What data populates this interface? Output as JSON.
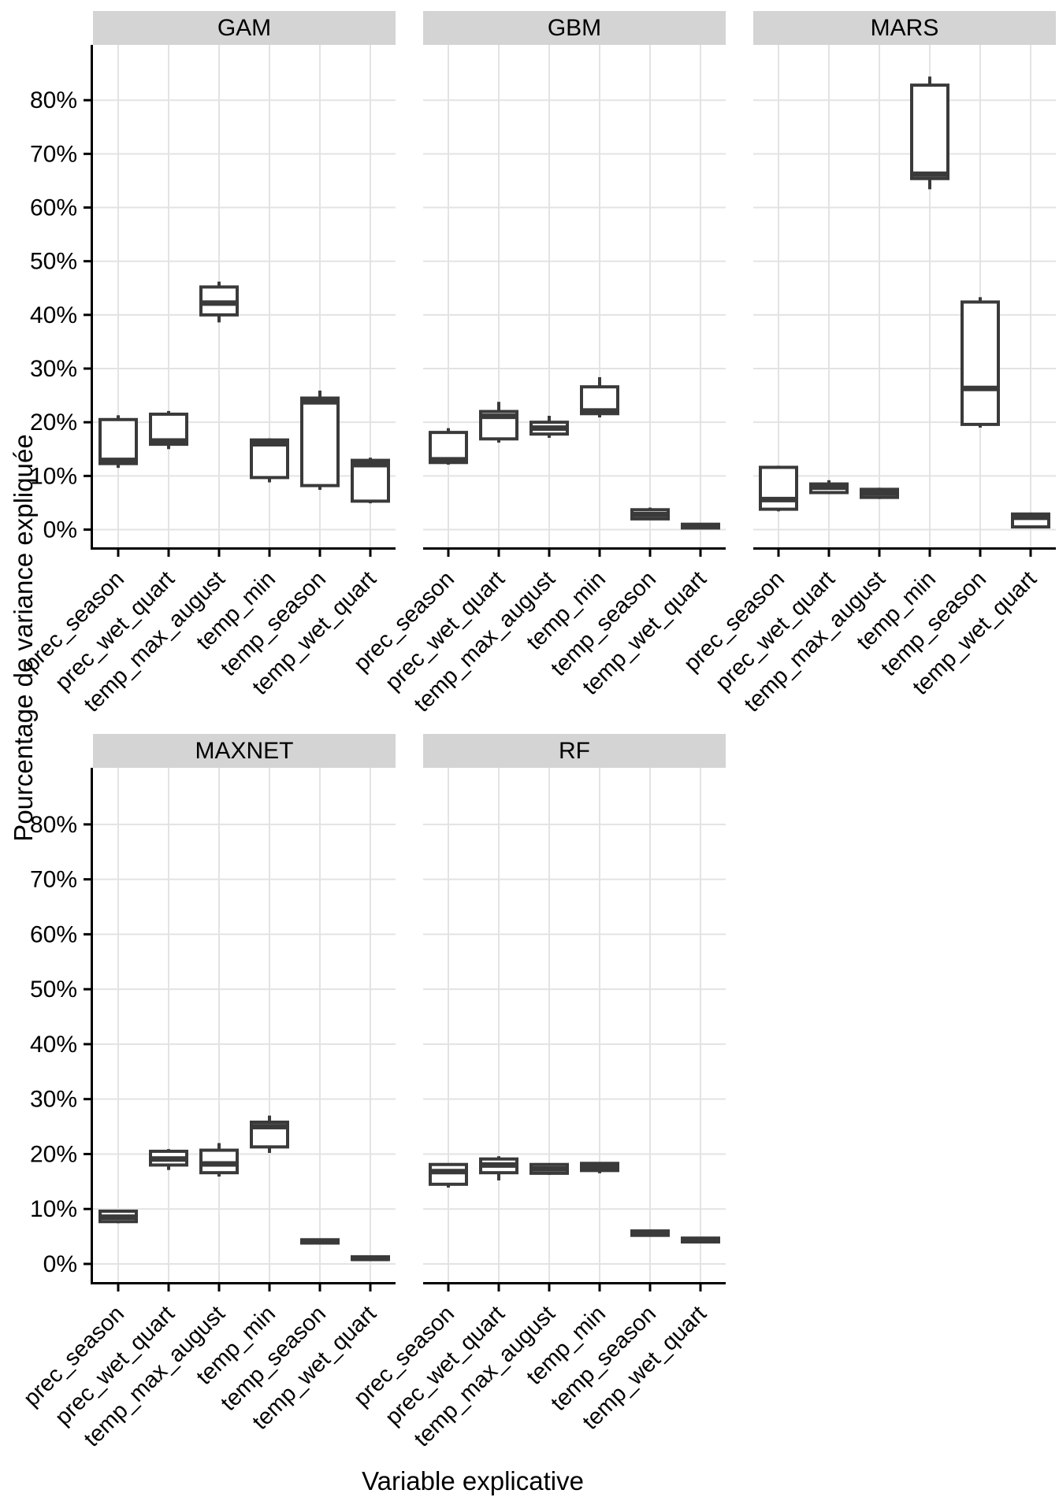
{
  "chart_data": {
    "type": "boxplot",
    "title": "",
    "ylabel": "Pourcentage de variance expliquée",
    "xlabel": "Variable explicative",
    "ylim": [
      -3.3,
      90.3
    ],
    "grid": true,
    "y_ticks": [
      {
        "value": 0,
        "label": "0%"
      },
      {
        "value": 10,
        "label": "10%"
      },
      {
        "value": 20,
        "label": "20%"
      },
      {
        "value": 30,
        "label": "30%"
      },
      {
        "value": 40,
        "label": "40%"
      },
      {
        "value": 50,
        "label": "50%"
      },
      {
        "value": 60,
        "label": "60%"
      },
      {
        "value": 70,
        "label": "70%"
      },
      {
        "value": 80,
        "label": "80%"
      }
    ],
    "categories": [
      "prec_season",
      "prec_wet_quart",
      "temp_max_august",
      "temp_min",
      "temp_season",
      "temp_wet_quart"
    ],
    "colors": {
      "box_fill": "#ffffff",
      "box_stroke": "#3a3a3a",
      "grid": "#e3e3e3",
      "strip_bg": "#d4d4d4",
      "axis": "#000000",
      "text": "#000000"
    },
    "facets": [
      {
        "label": "GAM",
        "row": 0,
        "col": 0,
        "boxes": [
          {
            "category": "prec_season",
            "whisker_low": 11.5,
            "q1": 12.3,
            "median": 12.9,
            "q3": 20.5,
            "whisker_high": 21.3
          },
          {
            "category": "prec_wet_quart",
            "whisker_low": 15.0,
            "q1": 15.9,
            "median": 16.5,
            "q3": 21.5,
            "whisker_high": 22.1
          },
          {
            "category": "temp_max_august",
            "whisker_low": 38.6,
            "q1": 40.0,
            "median": 42.2,
            "q3": 45.2,
            "whisker_high": 46.2
          },
          {
            "category": "temp_min",
            "whisker_low": 8.8,
            "q1": 9.7,
            "median": 16.0,
            "q3": 16.7,
            "whisker_high": 17.0
          },
          {
            "category": "temp_season",
            "whisker_low": 7.4,
            "q1": 8.2,
            "median": 23.8,
            "q3": 24.5,
            "whisker_high": 25.9
          },
          {
            "category": "temp_wet_quart",
            "whisker_low": 4.9,
            "q1": 5.3,
            "median": 12.1,
            "q3": 12.9,
            "whisker_high": 13.4
          }
        ]
      },
      {
        "label": "GBM",
        "row": 0,
        "col": 1,
        "boxes": [
          {
            "category": "prec_season",
            "whisker_low": 12.1,
            "q1": 12.5,
            "median": 13.0,
            "q3": 18.1,
            "whisker_high": 18.9
          },
          {
            "category": "prec_wet_quart",
            "whisker_low": 16.2,
            "q1": 16.9,
            "median": 21.1,
            "q3": 22.0,
            "whisker_high": 23.8
          },
          {
            "category": "temp_max_august",
            "whisker_low": 17.1,
            "q1": 17.8,
            "median": 18.9,
            "q3": 20.0,
            "whisker_high": 21.2
          },
          {
            "category": "temp_min",
            "whisker_low": 20.9,
            "q1": 21.6,
            "median": 22.1,
            "q3": 26.6,
            "whisker_high": 28.4
          },
          {
            "category": "temp_season",
            "whisker_low": 1.8,
            "q1": 2.0,
            "median": 2.8,
            "q3": 3.7,
            "whisker_high": 4.1
          },
          {
            "category": "temp_wet_quart",
            "whisker_low": 0.2,
            "q1": 0.3,
            "median": 0.7,
            "q3": 1.0,
            "whisker_high": 1.1
          }
        ]
      },
      {
        "label": "MARS",
        "row": 0,
        "col": 2,
        "boxes": [
          {
            "category": "prec_season",
            "whisker_low": 3.4,
            "q1": 3.8,
            "median": 5.6,
            "q3": 11.6,
            "whisker_high": 11.9
          },
          {
            "category": "prec_wet_quart",
            "whisker_low": 6.6,
            "q1": 6.9,
            "median": 7.9,
            "q3": 8.5,
            "whisker_high": 9.2
          },
          {
            "category": "temp_max_august",
            "whisker_low": 5.7,
            "q1": 6.0,
            "median": 6.8,
            "q3": 7.5,
            "whisker_high": 7.8
          },
          {
            "category": "temp_min",
            "whisker_low": 63.4,
            "q1": 65.4,
            "median": 66.2,
            "q3": 82.8,
            "whisker_high": 84.4
          },
          {
            "category": "temp_season",
            "whisker_low": 19.0,
            "q1": 19.6,
            "median": 26.3,
            "q3": 42.4,
            "whisker_high": 43.3
          },
          {
            "category": "temp_wet_quart",
            "whisker_low": 0.3,
            "q1": 0.5,
            "median": 2.3,
            "q3": 2.9,
            "whisker_high": 3.0
          }
        ]
      },
      {
        "label": "MAXNET",
        "row": 1,
        "col": 0,
        "boxes": [
          {
            "category": "prec_season",
            "whisker_low": 7.4,
            "q1": 7.7,
            "median": 8.5,
            "q3": 9.6,
            "whisker_high": 9.8
          },
          {
            "category": "prec_wet_quart",
            "whisker_low": 17.1,
            "q1": 18.0,
            "median": 19.1,
            "q3": 20.5,
            "whisker_high": 20.9
          },
          {
            "category": "temp_max_august",
            "whisker_low": 15.9,
            "q1": 16.6,
            "median": 18.2,
            "q3": 20.7,
            "whisker_high": 22.0
          },
          {
            "category": "temp_min",
            "whisker_low": 20.2,
            "q1": 21.3,
            "median": 25.0,
            "q3": 25.8,
            "whisker_high": 27.0
          },
          {
            "category": "temp_season",
            "whisker_low": 3.6,
            "q1": 3.8,
            "median": 4.1,
            "q3": 4.4,
            "whisker_high": 4.5
          },
          {
            "category": "temp_wet_quart",
            "whisker_low": 0.7,
            "q1": 0.8,
            "median": 1.0,
            "q3": 1.3,
            "whisker_high": 1.4
          }
        ]
      },
      {
        "label": "RF",
        "row": 1,
        "col": 1,
        "boxes": [
          {
            "category": "prec_season",
            "whisker_low": 13.9,
            "q1": 14.5,
            "median": 16.8,
            "q3": 18.1,
            "whisker_high": 18.3
          },
          {
            "category": "prec_wet_quart",
            "whisker_low": 15.2,
            "q1": 16.6,
            "median": 18.0,
            "q3": 19.1,
            "whisker_high": 19.6
          },
          {
            "category": "temp_max_august",
            "whisker_low": 16.2,
            "q1": 16.5,
            "median": 17.3,
            "q3": 18.1,
            "whisker_high": 18.3
          },
          {
            "category": "temp_min",
            "whisker_low": 16.5,
            "q1": 17.0,
            "median": 17.7,
            "q3": 18.3,
            "whisker_high": 18.4
          },
          {
            "category": "temp_season",
            "whisker_low": 5.1,
            "q1": 5.2,
            "median": 5.6,
            "q3": 6.0,
            "whisker_high": 6.1
          },
          {
            "category": "temp_wet_quart",
            "whisker_low": 3.9,
            "q1": 4.0,
            "median": 4.3,
            "q3": 4.7,
            "whisker_high": 4.8
          }
        ]
      }
    ]
  }
}
